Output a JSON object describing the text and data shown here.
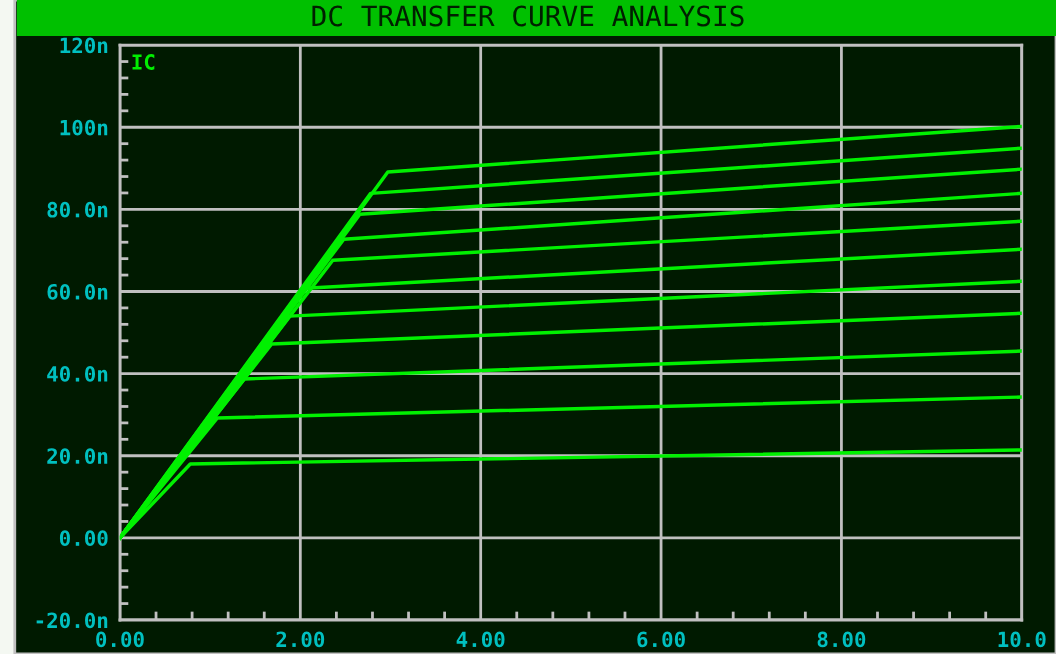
{
  "chart_data": {
    "type": "line",
    "title": "DC TRANSFER CURVE ANALYSIS",
    "ylabel": "IC",
    "xlim": [
      0,
      10
    ],
    "ylim": [
      -20,
      120
    ],
    "xticks": [
      {
        "value": 0,
        "label": "0.00"
      },
      {
        "value": 2,
        "label": "2.00"
      },
      {
        "value": 4,
        "label": "4.00"
      },
      {
        "value": 6,
        "label": "6.00"
      },
      {
        "value": 8,
        "label": "8.00"
      },
      {
        "value": 10,
        "label": "10.0"
      }
    ],
    "yticks": [
      {
        "value": -20,
        "label": "-20.0n"
      },
      {
        "value": 0,
        "label": "0.00"
      },
      {
        "value": 20,
        "label": "20.0n"
      },
      {
        "value": 40,
        "label": "40.0n"
      },
      {
        "value": 60,
        "label": "60.0n"
      },
      {
        "value": 80,
        "label": "80.0n"
      },
      {
        "value": 100,
        "label": "100n"
      },
      {
        "value": 120,
        "label": "120n"
      }
    ],
    "grid": true,
    "marker": "none",
    "line_style": "solid",
    "series": [
      {
        "color": "#00f000",
        "x": [
          0,
          0.78,
          10
        ],
        "values": [
          0,
          18.0,
          21.4
        ]
      },
      {
        "color": "#00f000",
        "x": [
          0,
          1.08,
          10
        ],
        "values": [
          0,
          29.2,
          34.3
        ]
      },
      {
        "color": "#00f000",
        "x": [
          0,
          1.38,
          10
        ],
        "values": [
          0,
          38.7,
          45.5
        ]
      },
      {
        "color": "#00f000",
        "x": [
          0,
          1.68,
          10
        ],
        "values": [
          0,
          47.2,
          54.7
        ]
      },
      {
        "color": "#00f000",
        "x": [
          0,
          1.88,
          10
        ],
        "values": [
          0,
          54.0,
          62.5
        ]
      },
      {
        "color": "#00f000",
        "x": [
          0,
          2.06,
          10
        ],
        "values": [
          0,
          60.8,
          70.3
        ]
      },
      {
        "color": "#00f000",
        "x": [
          0,
          2.36,
          10
        ],
        "values": [
          0,
          67.6,
          77.1
        ]
      },
      {
        "color": "#00f000",
        "x": [
          0,
          2.48,
          10
        ],
        "values": [
          0,
          72.7,
          83.9
        ]
      },
      {
        "color": "#00f000",
        "x": [
          0,
          2.66,
          10
        ],
        "values": [
          0,
          78.8,
          89.8
        ]
      },
      {
        "color": "#00f000",
        "x": [
          0,
          2.78,
          10
        ],
        "values": [
          0,
          83.9,
          94.9
        ]
      },
      {
        "color": "#00f000",
        "x": [
          0,
          2.97,
          10
        ],
        "values": [
          0,
          89.1,
          100.2
        ]
      }
    ]
  }
}
